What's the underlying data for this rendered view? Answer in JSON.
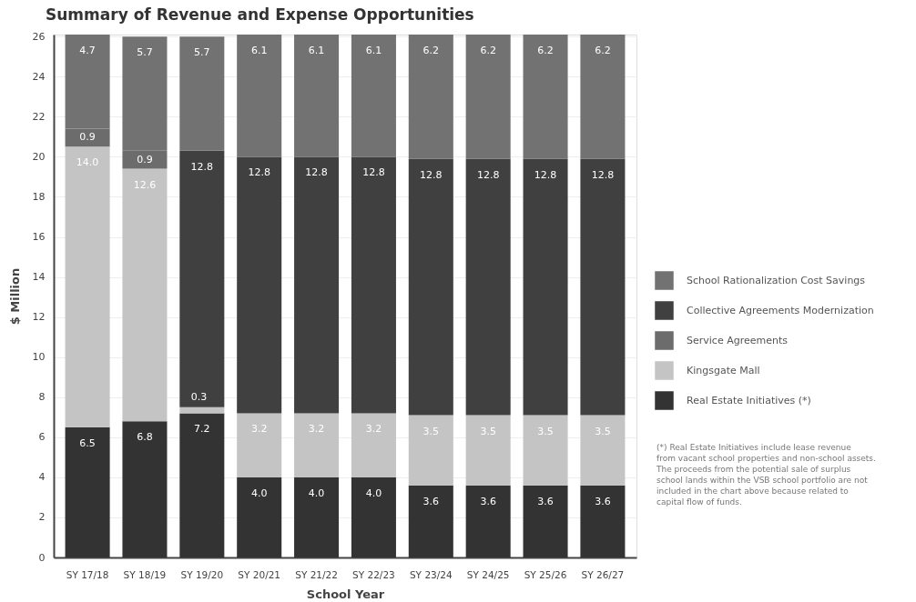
{
  "chart_data": {
    "type": "bar",
    "title": "Summary of Revenue and Expense Opportunities",
    "xlabel": "School Year",
    "ylabel": "$ Million",
    "categories": [
      "SY 17/18",
      "SY 18/19",
      "SY 19/20",
      "SY 20/21",
      "SY 21/22",
      "SY 22/23",
      "SY 23/24",
      "SY 24/25",
      "SY 25/26",
      "SY 26/27"
    ],
    "stacked": true,
    "series": [
      {
        "name": "Real Estate Initiatives (*)",
        "color": "#333333",
        "values": [
          6.5,
          6.8,
          7.2,
          4.0,
          4.0,
          4.0,
          3.6,
          3.6,
          3.6,
          3.6
        ],
        "value_labels": [
          "6.5",
          "6.8",
          "7.2",
          "4.0",
          "4.0",
          "4.0",
          "3.6",
          "3.6",
          "3.6",
          "3.6"
        ]
      },
      {
        "name": "Kingsgate Mall",
        "color": "#c4c4c4",
        "values": [
          14.0,
          12.6,
          0.3,
          3.2,
          3.2,
          3.2,
          3.5,
          3.5,
          3.5,
          3.5
        ],
        "value_labels": [
          "14.0",
          "12.6",
          "0.3",
          "3.2",
          "3.2",
          "3.2",
          "3.5",
          "3.5",
          "3.5",
          "3.5"
        ]
      },
      {
        "name": "Service Agreements",
        "color": "#6c6c6c",
        "values": [
          0.9,
          0.9,
          null,
          null,
          null,
          null,
          null,
          null,
          null,
          null
        ],
        "value_labels": [
          "0.9",
          "0.9",
          null,
          null,
          null,
          null,
          null,
          null,
          null,
          null
        ]
      },
      {
        "name": "Collective Agreements Modernization",
        "color": "#404040",
        "values": [
          null,
          null,
          12.8,
          12.8,
          12.8,
          12.8,
          12.8,
          12.8,
          12.8,
          12.8
        ],
        "value_labels": [
          null,
          null,
          "12.8",
          "12.8",
          "12.8",
          "12.8",
          "12.8",
          "12.8",
          "12.8",
          "12.8"
        ]
      },
      {
        "name": "School Rationalization Cost Savings",
        "color": "#727272",
        "values": [
          4.7,
          5.7,
          5.7,
          6.1,
          6.1,
          6.1,
          6.2,
          6.2,
          6.2,
          6.2
        ],
        "value_labels": [
          "4.7",
          "5.7",
          "5.7",
          "6.1",
          "6.1",
          "6.1",
          "6.2",
          "6.2",
          "6.2",
          "6.2"
        ]
      }
    ],
    "ylim": [
      0,
      26.1
    ],
    "yticks": [
      0,
      2,
      4,
      6,
      8,
      10,
      12,
      14,
      16,
      18,
      20,
      22,
      24,
      26
    ],
    "grid": "y",
    "legend": "right",
    "annotations": [
      "(*) Real Estate Initiatives include lease revenue from vacant school properties and non-school assets. The proceeds from the potential sale of surplus school lands within the VSB school portfolio are not included in the chart above because related to capital flow of funds."
    ]
  }
}
